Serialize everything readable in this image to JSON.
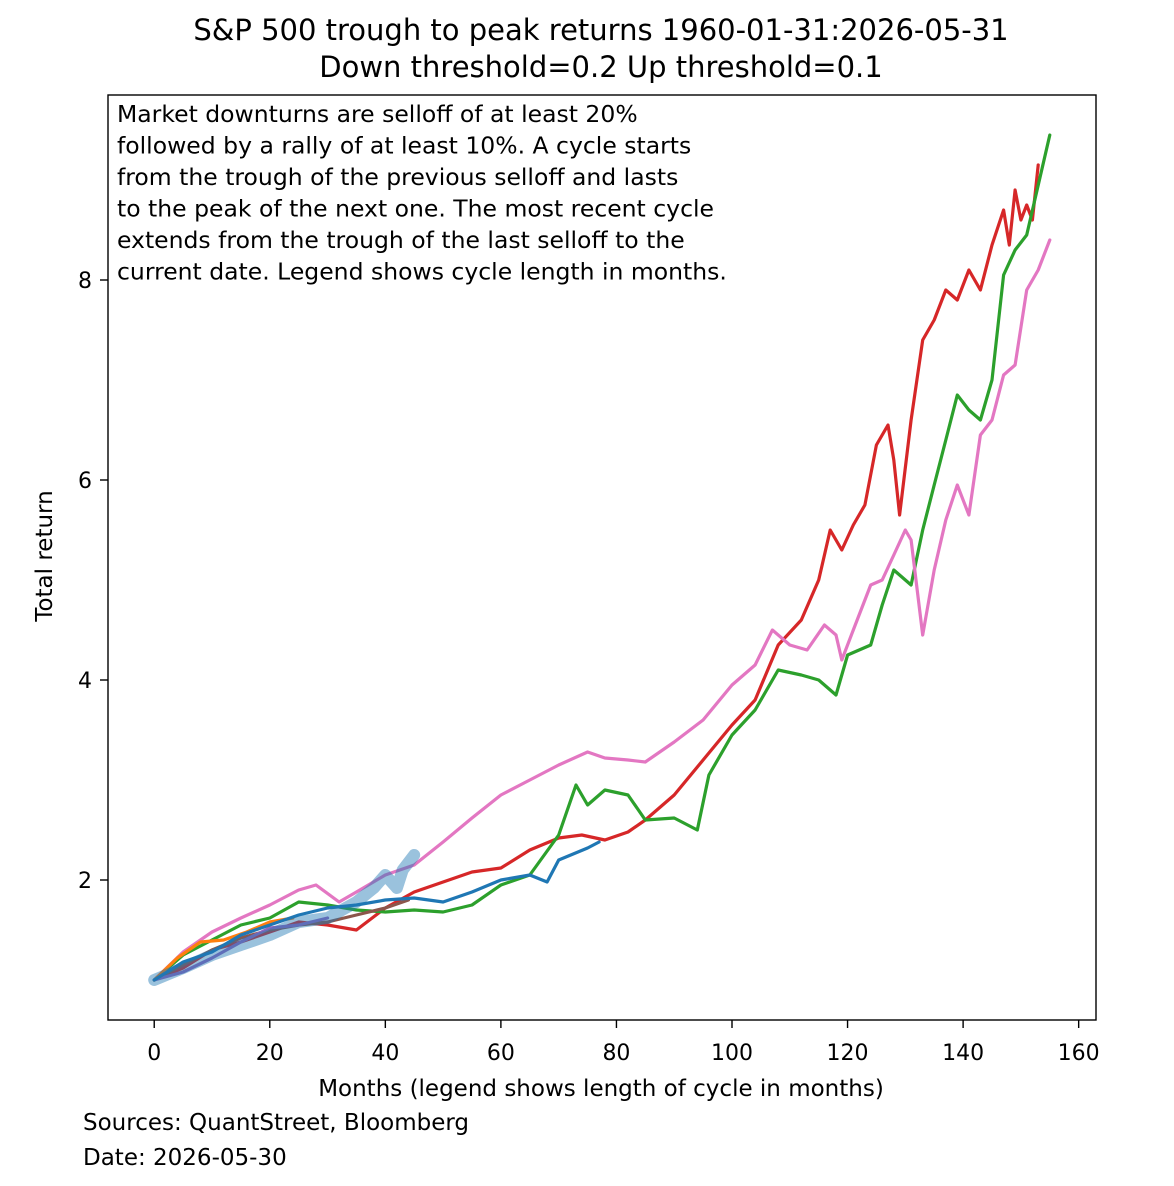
{
  "chart_data": {
    "type": "line",
    "title": "S&P 500 trough to peak returns 1960-01-31:2026-05-31",
    "subtitle": "Down threshold=0.2  Up threshold=0.1",
    "xlabel": "Months (legend shows length of cycle in months)",
    "ylabel": "Total return",
    "xlim": [
      -8,
      163
    ],
    "ylim": [
      0.6,
      9.85
    ],
    "xticks": [
      0,
      20,
      40,
      60,
      80,
      100,
      120,
      140,
      160
    ],
    "yticks": [
      2,
      4,
      6,
      8
    ],
    "grid": false,
    "legend": "none visible",
    "annotation": [
      "Market downturns are selloff of at least 20%",
      "followed by a rally of at least 10%. A cycle starts",
      "from the trough of the previous selloff and lasts",
      "to the peak of the next one. The most recent cycle",
      "extends from the trough of the last selloff to the",
      "current date. Legend shows cycle length in months."
    ],
    "series": [
      {
        "color": "#d62728",
        "points": [
          [
            0,
            1.0
          ],
          [
            5,
            1.12
          ],
          [
            10,
            1.3
          ],
          [
            15,
            1.38
          ],
          [
            20,
            1.48
          ],
          [
            25,
            1.58
          ],
          [
            30,
            1.55
          ],
          [
            35,
            1.5
          ],
          [
            40,
            1.72
          ],
          [
            45,
            1.88
          ],
          [
            50,
            1.98
          ],
          [
            55,
            2.08
          ],
          [
            60,
            2.12
          ],
          [
            65,
            2.3
          ],
          [
            70,
            2.42
          ],
          [
            74,
            2.45
          ],
          [
            78,
            2.4
          ],
          [
            82,
            2.48
          ],
          [
            85,
            2.6
          ],
          [
            90,
            2.85
          ],
          [
            95,
            3.2
          ],
          [
            100,
            3.55
          ],
          [
            104,
            3.8
          ],
          [
            108,
            4.35
          ],
          [
            112,
            4.6
          ],
          [
            115,
            5.0
          ],
          [
            117,
            5.5
          ],
          [
            119,
            5.3
          ],
          [
            121,
            5.55
          ],
          [
            123,
            5.75
          ],
          [
            125,
            6.35
          ],
          [
            127,
            6.55
          ],
          [
            128,
            6.2
          ],
          [
            129,
            5.65
          ],
          [
            131,
            6.6
          ],
          [
            133,
            7.4
          ],
          [
            135,
            7.6
          ],
          [
            137,
            7.9
          ],
          [
            139,
            7.8
          ],
          [
            141,
            8.1
          ],
          [
            143,
            7.9
          ],
          [
            145,
            8.35
          ],
          [
            147,
            8.7
          ],
          [
            148,
            8.35
          ],
          [
            149,
            8.9
          ],
          [
            150,
            8.6
          ],
          [
            151,
            8.75
          ],
          [
            152,
            8.6
          ],
          [
            153,
            9.15
          ]
        ]
      },
      {
        "color": "#2ca02c",
        "points": [
          [
            0,
            1.0
          ],
          [
            5,
            1.25
          ],
          [
            10,
            1.4
          ],
          [
            15,
            1.55
          ],
          [
            20,
            1.62
          ],
          [
            25,
            1.78
          ],
          [
            30,
            1.75
          ],
          [
            35,
            1.7
          ],
          [
            40,
            1.68
          ],
          [
            45,
            1.7
          ],
          [
            50,
            1.68
          ],
          [
            55,
            1.75
          ],
          [
            60,
            1.95
          ],
          [
            65,
            2.05
          ],
          [
            70,
            2.45
          ],
          [
            73,
            2.95
          ],
          [
            75,
            2.75
          ],
          [
            78,
            2.9
          ],
          [
            82,
            2.85
          ],
          [
            85,
            2.6
          ],
          [
            90,
            2.62
          ],
          [
            94,
            2.5
          ],
          [
            96,
            3.05
          ],
          [
            100,
            3.45
          ],
          [
            104,
            3.7
          ],
          [
            108,
            4.1
          ],
          [
            112,
            4.05
          ],
          [
            115,
            4.0
          ],
          [
            118,
            3.85
          ],
          [
            120,
            4.25
          ],
          [
            124,
            4.35
          ],
          [
            126,
            4.75
          ],
          [
            128,
            5.1
          ],
          [
            131,
            4.95
          ],
          [
            133,
            5.5
          ],
          [
            135,
            5.95
          ],
          [
            137,
            6.4
          ],
          [
            139,
            6.85
          ],
          [
            141,
            6.7
          ],
          [
            143,
            6.6
          ],
          [
            145,
            7.0
          ],
          [
            147,
            8.05
          ],
          [
            149,
            8.3
          ],
          [
            151,
            8.45
          ],
          [
            155,
            9.45
          ]
        ]
      },
      {
        "color": "#e377c2",
        "points": [
          [
            0,
            1.0
          ],
          [
            5,
            1.28
          ],
          [
            10,
            1.48
          ],
          [
            15,
            1.62
          ],
          [
            20,
            1.75
          ],
          [
            25,
            1.9
          ],
          [
            28,
            1.95
          ],
          [
            32,
            1.78
          ],
          [
            35,
            1.88
          ],
          [
            40,
            2.05
          ],
          [
            45,
            2.15
          ],
          [
            50,
            2.38
          ],
          [
            55,
            2.62
          ],
          [
            60,
            2.85
          ],
          [
            65,
            3.0
          ],
          [
            70,
            3.15
          ],
          [
            75,
            3.28
          ],
          [
            78,
            3.22
          ],
          [
            82,
            3.2
          ],
          [
            85,
            3.18
          ],
          [
            90,
            3.38
          ],
          [
            95,
            3.6
          ],
          [
            100,
            3.95
          ],
          [
            104,
            4.15
          ],
          [
            107,
            4.5
          ],
          [
            110,
            4.35
          ],
          [
            113,
            4.3
          ],
          [
            116,
            4.55
          ],
          [
            118,
            4.45
          ],
          [
            119,
            4.2
          ],
          [
            121,
            4.5
          ],
          [
            124,
            4.95
          ],
          [
            126,
            5.0
          ],
          [
            128,
            5.25
          ],
          [
            130,
            5.5
          ],
          [
            131,
            5.4
          ],
          [
            133,
            4.45
          ],
          [
            135,
            5.1
          ],
          [
            137,
            5.6
          ],
          [
            139,
            5.95
          ],
          [
            141,
            5.65
          ],
          [
            143,
            6.45
          ],
          [
            145,
            6.6
          ],
          [
            147,
            7.05
          ],
          [
            149,
            7.15
          ],
          [
            151,
            7.9
          ],
          [
            153,
            8.1
          ],
          [
            155,
            8.4
          ]
        ]
      },
      {
        "color": "#8c564b",
        "points": [
          [
            0,
            1.0
          ],
          [
            5,
            1.15
          ],
          [
            10,
            1.3
          ],
          [
            15,
            1.42
          ],
          [
            20,
            1.5
          ],
          [
            25,
            1.55
          ],
          [
            30,
            1.58
          ],
          [
            35,
            1.65
          ],
          [
            40,
            1.72
          ],
          [
            44,
            1.8
          ]
        ]
      },
      {
        "color": "#ff7f0e",
        "points": [
          [
            0,
            1.0
          ],
          [
            4,
            1.22
          ],
          [
            8,
            1.38
          ],
          [
            12,
            1.4
          ],
          [
            16,
            1.48
          ],
          [
            20,
            1.58
          ],
          [
            24,
            1.62
          ]
        ]
      },
      {
        "color": "#9467bd",
        "points": [
          [
            0,
            1.0
          ],
          [
            5,
            1.08
          ],
          [
            10,
            1.22
          ],
          [
            15,
            1.38
          ],
          [
            20,
            1.52
          ],
          [
            25,
            1.55
          ],
          [
            30,
            1.62
          ]
        ]
      },
      {
        "color": "#1f77b4",
        "points": [
          [
            0,
            1.0
          ],
          [
            5,
            1.18
          ],
          [
            10,
            1.28
          ],
          [
            15,
            1.45
          ],
          [
            20,
            1.55
          ],
          [
            25,
            1.65
          ],
          [
            30,
            1.72
          ],
          [
            35,
            1.75
          ],
          [
            40,
            1.8
          ],
          [
            45,
            1.82
          ],
          [
            50,
            1.78
          ],
          [
            55,
            1.88
          ],
          [
            60,
            2.0
          ],
          [
            65,
            2.05
          ],
          [
            68,
            1.98
          ],
          [
            70,
            2.2
          ],
          [
            75,
            2.32
          ],
          [
            77,
            2.38
          ]
        ]
      },
      {
        "color": "#1f77b4",
        "width": 12,
        "opacity": 0.45,
        "points": [
          [
            0,
            1.0
          ],
          [
            5,
            1.12
          ],
          [
            10,
            1.25
          ],
          [
            15,
            1.35
          ],
          [
            20,
            1.45
          ],
          [
            25,
            1.58
          ],
          [
            30,
            1.62
          ],
          [
            35,
            1.78
          ],
          [
            38,
            1.92
          ],
          [
            40,
            2.05
          ],
          [
            42,
            1.92
          ],
          [
            43,
            2.1
          ],
          [
            45,
            2.25
          ]
        ]
      }
    ]
  },
  "footer": {
    "sources": "Sources: QuantStreet, Bloomberg",
    "date": "Date: 2026-05-30"
  }
}
